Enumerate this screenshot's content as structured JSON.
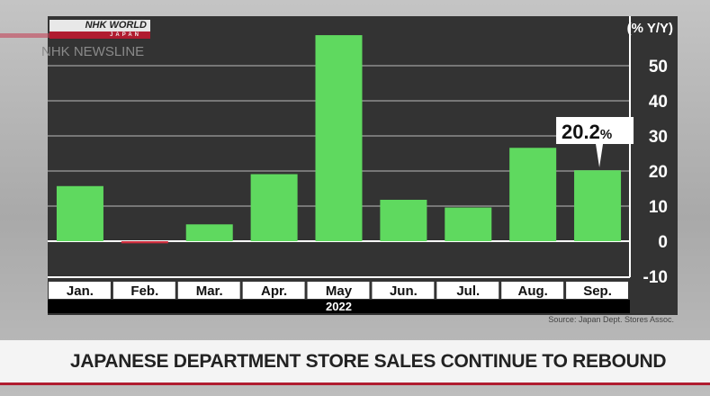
{
  "branding": {
    "logo_top": "NHK WORLD",
    "logo_bottom": "JAPAN",
    "program": "NHK NEWSLINE"
  },
  "headline": "JAPANESE DEPARTMENT STORE SALES CONTINUE TO REBOUND",
  "source": "Source: Japan Dept. Stores Assoc.",
  "colors": {
    "bar": "#5fd95f",
    "panel": "#333333",
    "accent": "#b01c30"
  },
  "chart_data": {
    "type": "bar",
    "categories": [
      "Jan.",
      "Feb.",
      "Mar.",
      "Apr.",
      "May",
      "Jun.",
      "Jul.",
      "Aug.",
      "Sep."
    ],
    "values": [
      15.7,
      -0.6,
      4.8,
      19.1,
      58.7,
      11.8,
      9.6,
      26.6,
      20.2
    ],
    "xlabel": "2022",
    "ylabel": "(% Y/Y)",
    "ylim": [
      -10,
      60
    ],
    "yticks": [
      -10,
      0,
      10,
      20,
      30,
      40,
      50
    ],
    "grid": true,
    "annotation": {
      "category": "Sep.",
      "text": "20.2",
      "unit": "%"
    }
  }
}
